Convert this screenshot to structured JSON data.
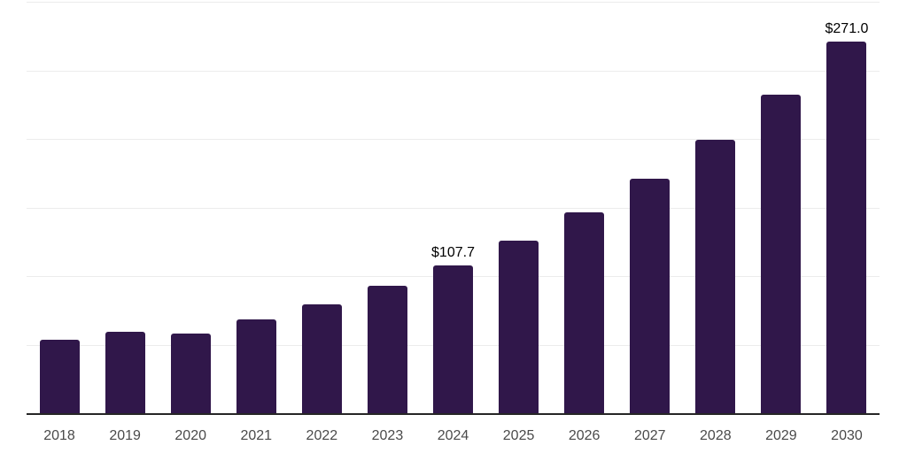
{
  "chart_data": {
    "type": "bar",
    "title": "",
    "xlabel": "",
    "ylabel": "",
    "categories": [
      "2018",
      "2019",
      "2020",
      "2021",
      "2022",
      "2023",
      "2024",
      "2025",
      "2026",
      "2027",
      "2028",
      "2029",
      "2030"
    ],
    "values": [
      53.4,
      59.5,
      58.3,
      68.7,
      79.6,
      93.0,
      107.7,
      125.6,
      146.5,
      170.8,
      199.2,
      232.4,
      271.0
    ],
    "data_labels": {
      "2024": "$107.7",
      "2030": "$271.0"
    },
    "ylim": [
      0,
      300
    ],
    "grid_step": 50,
    "grid": true,
    "legend": false,
    "colors": {
      "bar": "#30174a",
      "axis_line": "#262626",
      "gridline": "#ececec",
      "tick_label": "#4a4a4a",
      "data_label": "#000000",
      "background": "#ffffff"
    }
  }
}
